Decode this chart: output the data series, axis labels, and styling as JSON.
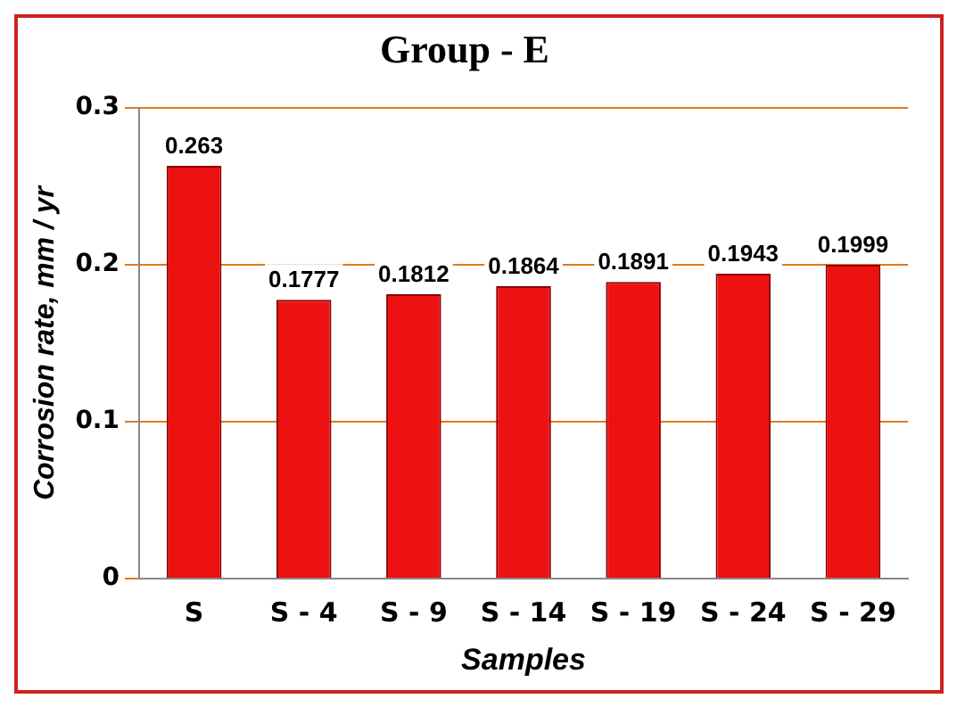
{
  "chart_data": {
    "type": "bar",
    "title": "Group - E",
    "xlabel": "Samples",
    "ylabel": "Corrosion rate, mm / yr",
    "categories": [
      "S",
      "S - 4",
      "S - 9",
      "S - 14",
      "S - 19",
      "S - 24",
      "S - 29"
    ],
    "values": [
      0.263,
      0.1777,
      0.1812,
      0.1864,
      0.1891,
      0.1943,
      0.1999
    ],
    "color": "#ee1111",
    "ylim": [
      0,
      0.3
    ],
    "yticks": [
      0,
      0.1,
      0.2,
      0.3
    ],
    "grid": "y",
    "data_labels": true
  }
}
